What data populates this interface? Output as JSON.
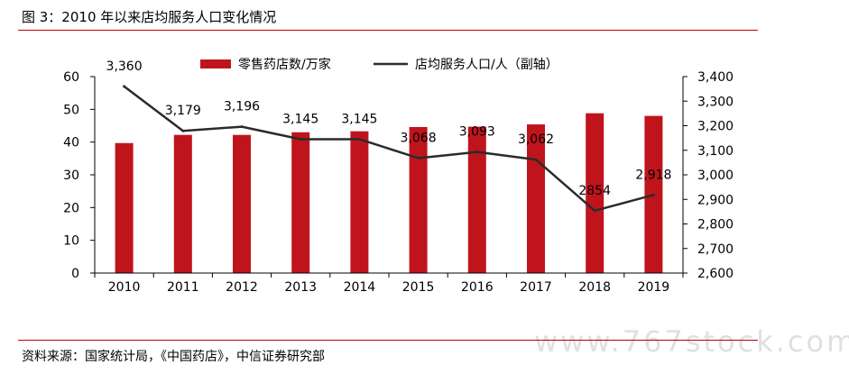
{
  "figure": {
    "title": "图 3：2010 年以来店均服务人口变化情况",
    "source": "资料来源：国家统计局，《中国药店》，中信证券研究部",
    "watermark": "www.767stock.com"
  },
  "colors": {
    "bar": "#c0141c",
    "line": "#2b2b2b",
    "rule": "#c00000"
  },
  "chart_data": {
    "type": "bar",
    "categories": [
      "2010",
      "2011",
      "2012",
      "2013",
      "2014",
      "2015",
      "2016",
      "2017",
      "2018",
      "2019"
    ],
    "series": [
      {
        "name": "零售药店数/万家",
        "type": "bar",
        "axis": "left",
        "values": [
          39.7,
          42.2,
          42.2,
          43.0,
          43.3,
          44.6,
          44.7,
          45.4,
          48.8,
          48.0
        ]
      },
      {
        "name": "店均服务人口/人（副轴）",
        "type": "line",
        "axis": "right",
        "values": [
          3360,
          3179,
          3196,
          3145,
          3145,
          3068,
          3093,
          3062,
          2854,
          2918
        ],
        "labels": [
          "3,360",
          "3,179",
          "3,196",
          "3,145",
          "3,145",
          "3,068",
          "3,093",
          "3,062",
          "2854",
          "2,918"
        ]
      }
    ],
    "left_axis": {
      "min": 0,
      "max": 60,
      "ticks": [
        "0",
        "10",
        "20",
        "30",
        "40",
        "50",
        "60"
      ]
    },
    "right_axis": {
      "min": 2600,
      "max": 3400,
      "ticks": [
        "2,600",
        "2,700",
        "2,800",
        "2,900",
        "3,000",
        "3,100",
        "3,200",
        "3,300",
        "3,400"
      ]
    },
    "grid": false,
    "legend_position": "top"
  }
}
